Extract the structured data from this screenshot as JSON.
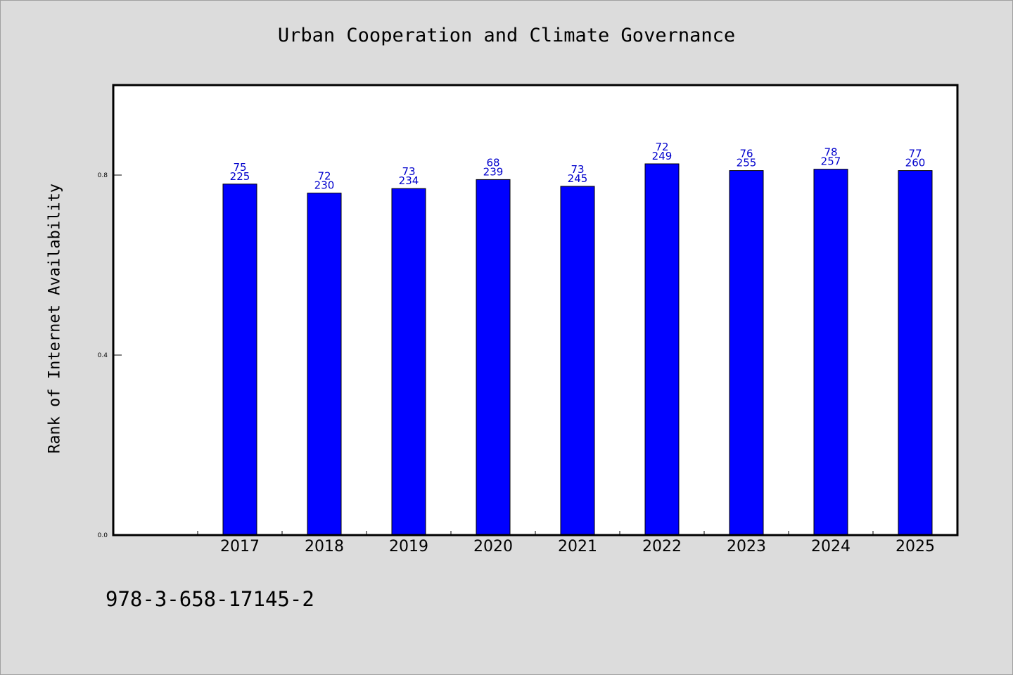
{
  "page": {
    "footer_code": "978-3-658-17145-2"
  },
  "chart_data": {
    "type": "bar",
    "title": "Urban Cooperation and Climate Governance",
    "xlabel": "",
    "ylabel": "Rank of Internet Availability",
    "categories": [
      "2017",
      "2018",
      "2019",
      "2020",
      "2021",
      "2022",
      "2023",
      "2024",
      "2025"
    ],
    "series": [
      {
        "values": [
          0.78,
          0.76,
          0.77,
          0.79,
          0.775,
          0.825,
          0.81,
          0.813,
          0.81
        ],
        "label_top": [
          "75",
          "72",
          "73",
          "68",
          "73",
          "72",
          "76",
          "78",
          "77"
        ],
        "label_bottom": [
          "225",
          "230",
          "234",
          "239",
          "245",
          "249",
          "255",
          "257",
          "260"
        ]
      }
    ],
    "yticks": [
      "0.0",
      "0.4",
      "0.8"
    ],
    "ytick_values": [
      0.0,
      0.4,
      0.8
    ],
    "ylim": [
      0,
      1.0
    ],
    "grid": false,
    "colors": {
      "bar": "#0000ff",
      "bar_edge": "#000000",
      "data_label": "#0000cc",
      "plot_background": "#ffffff",
      "figure_background": "#dcdcdc"
    }
  }
}
